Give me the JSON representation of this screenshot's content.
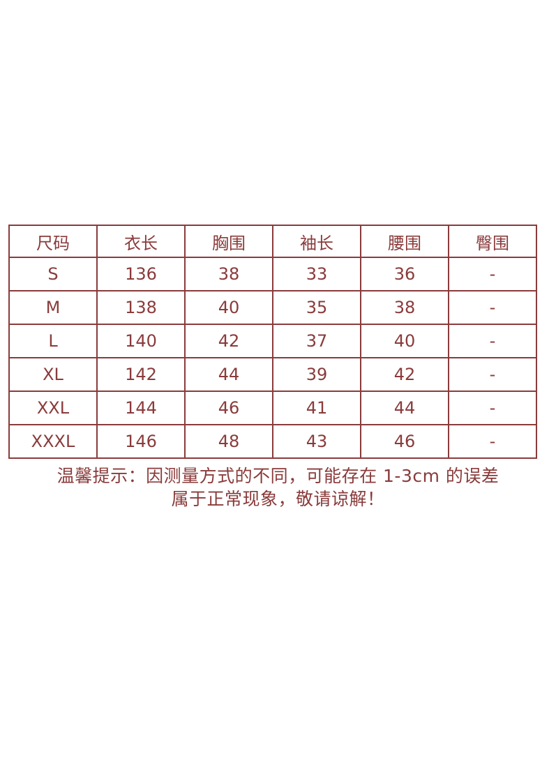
{
  "table": {
    "headers": [
      "尺码",
      "衣长",
      "胸围",
      "袖长",
      "腰围",
      "臀围"
    ],
    "rows": [
      [
        "S",
        "136",
        "38",
        "33",
        "36",
        "-"
      ],
      [
        "M",
        "138",
        "40",
        "35",
        "38",
        "-"
      ],
      [
        "L",
        "140",
        "42",
        "37",
        "40",
        "-"
      ],
      [
        "XL",
        "142",
        "44",
        "39",
        "42",
        "-"
      ],
      [
        "XXL",
        "144",
        "46",
        "41",
        "44",
        "-"
      ],
      [
        "XXXL",
        "146",
        "48",
        "43",
        "46",
        "-"
      ]
    ]
  },
  "note": {
    "line1": "温馨提示：因测量方式的不同，可能存在 1-3cm 的误差",
    "line2": "属于正常现象，敬请谅解！"
  },
  "colors": {
    "text": "#8a3b3b",
    "border": "#8a3b3b",
    "background": "#ffffff"
  }
}
